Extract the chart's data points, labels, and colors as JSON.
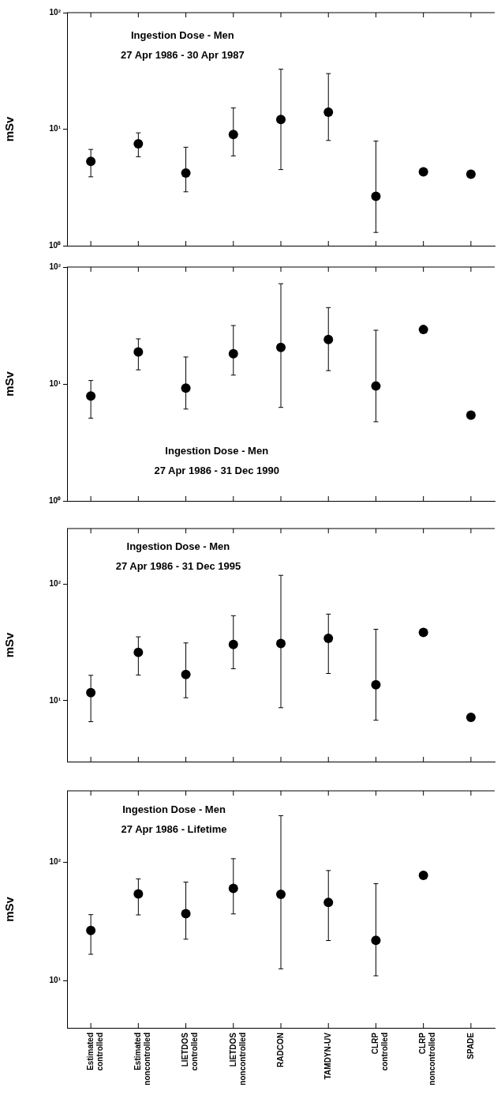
{
  "chart_data": [
    {
      "type": "scatter",
      "title": "Ingestion Dose - Men",
      "subtitle": "27 Apr 1986 - 30 Apr 1987",
      "ylabel": "mSv",
      "categories": [
        null,
        null,
        null,
        null,
        null,
        null,
        null,
        null,
        null
      ],
      "series": [
        {
          "color": "#000000",
          "values": [
            5.3,
            7.5,
            4.2,
            9.0,
            12.1,
            14.0,
            2.65,
            4.3,
            4.1
          ],
          "errors": [
            [
              3.9,
              6.7
            ],
            [
              5.8,
              9.3
            ],
            [
              2.9,
              7.0
            ],
            [
              5.9,
              15.2
            ],
            [
              4.5,
              32.7
            ],
            [
              8.0,
              30
            ],
            [
              1.3,
              7.9
            ],
            null,
            null
          ]
        }
      ],
      "log": true,
      "ylim": [
        1,
        100
      ],
      "yticks": [
        {
          "value": 1,
          "label": "10⁰"
        },
        {
          "value": 10,
          "label": "10¹"
        },
        {
          "value": 100,
          "label": "10²"
        }
      ],
      "grid": false,
      "legend": false,
      "marker": "circle",
      "tick_labels": "y"
    },
    {
      "type": "scatter",
      "title": "Ingestion Dose - Men",
      "subtitle": "27 Apr 1986 - 31 Dec 1990",
      "ylabel": "mSv",
      "categories": [
        null,
        null,
        null,
        null,
        null,
        null,
        null,
        null,
        null
      ],
      "series": [
        {
          "color": "#000000",
          "values": [
            7.9,
            18.8,
            9.2,
            18.1,
            20.5,
            24,
            9.6,
            29.2,
            5.4
          ],
          "errors": [
            [
              5.1,
              10.7
            ],
            [
              13.2,
              24.3
            ],
            [
              6.1,
              17
            ],
            [
              11.9,
              31.6
            ],
            [
              6.3,
              72
            ],
            [
              13,
              45
            ],
            [
              4.75,
              28.8
            ],
            null,
            null
          ]
        }
      ],
      "log": true,
      "ylim": [
        1,
        100
      ],
      "yticks": [
        {
          "value": 1,
          "label": "10⁰"
        },
        {
          "value": 10,
          "label": "10¹"
        },
        {
          "value": 100,
          "label": "10²"
        }
      ],
      "grid": false,
      "legend": false,
      "marker": "circle",
      "tick_labels": "y"
    },
    {
      "type": "scatter",
      "title": "Ingestion Dose - Men",
      "subtitle": "27 Apr 1986 - 31 Dec 1995",
      "ylabel": "mSv",
      "categories": [
        null,
        null,
        null,
        null,
        null,
        null,
        null,
        null,
        null
      ],
      "series": [
        {
          "color": "#000000",
          "values": [
            11.7,
            26,
            16.8,
            30.3,
            30.9,
            34.2,
            13.7,
            38.5,
            7.2
          ],
          "errors": [
            [
              6.6,
              16.5
            ],
            [
              16.6,
              35.3
            ],
            [
              10.6,
              31.3
            ],
            [
              18.8,
              53.6
            ],
            [
              8.7,
              119
            ],
            [
              17.1,
              55.3
            ],
            [
              6.8,
              41
            ],
            null,
            null
          ]
        }
      ],
      "log": true,
      "ylim": [
        3,
        300
      ],
      "yticks": [
        {
          "value": 10,
          "label": "10¹"
        },
        {
          "value": 100,
          "label": "10²"
        }
      ],
      "grid": false,
      "legend": false,
      "marker": "circle",
      "tick_labels": "y"
    },
    {
      "type": "scatter",
      "title": "Ingestion Dose - Men",
      "subtitle": "27 Apr 1986 - Lifetime",
      "ylabel": "mSv",
      "categories": [
        "Estimated controlled",
        "Estimated noncontrolled",
        "LIETDOS controlled",
        "LIETDOS noncontrolled",
        "RADCON",
        "TAMDYN-UV",
        "CLRP controlled",
        "CLRP noncontrolled",
        "SPADE"
      ],
      "series": [
        {
          "color": "#000000",
          "values": [
            26.5,
            53.9,
            36.8,
            60,
            53.6,
            45.8,
            21.9,
            77.4,
            null
          ],
          "errors": [
            [
              16.7,
              36.1
            ],
            [
              35.9,
              72.3
            ],
            [
              22.4,
              67.9
            ],
            [
              36.6,
              107
            ],
            [
              12.6,
              247
            ],
            [
              21.8,
              85
            ],
            [
              11,
              65.8
            ],
            null,
            null
          ]
        }
      ],
      "log": true,
      "ylim": [
        4,
        400
      ],
      "yticks": [
        {
          "value": 10,
          "label": "10¹"
        },
        {
          "value": 100,
          "label": "10²"
        }
      ],
      "grid": false,
      "legend": false,
      "marker": "circle"
    }
  ]
}
